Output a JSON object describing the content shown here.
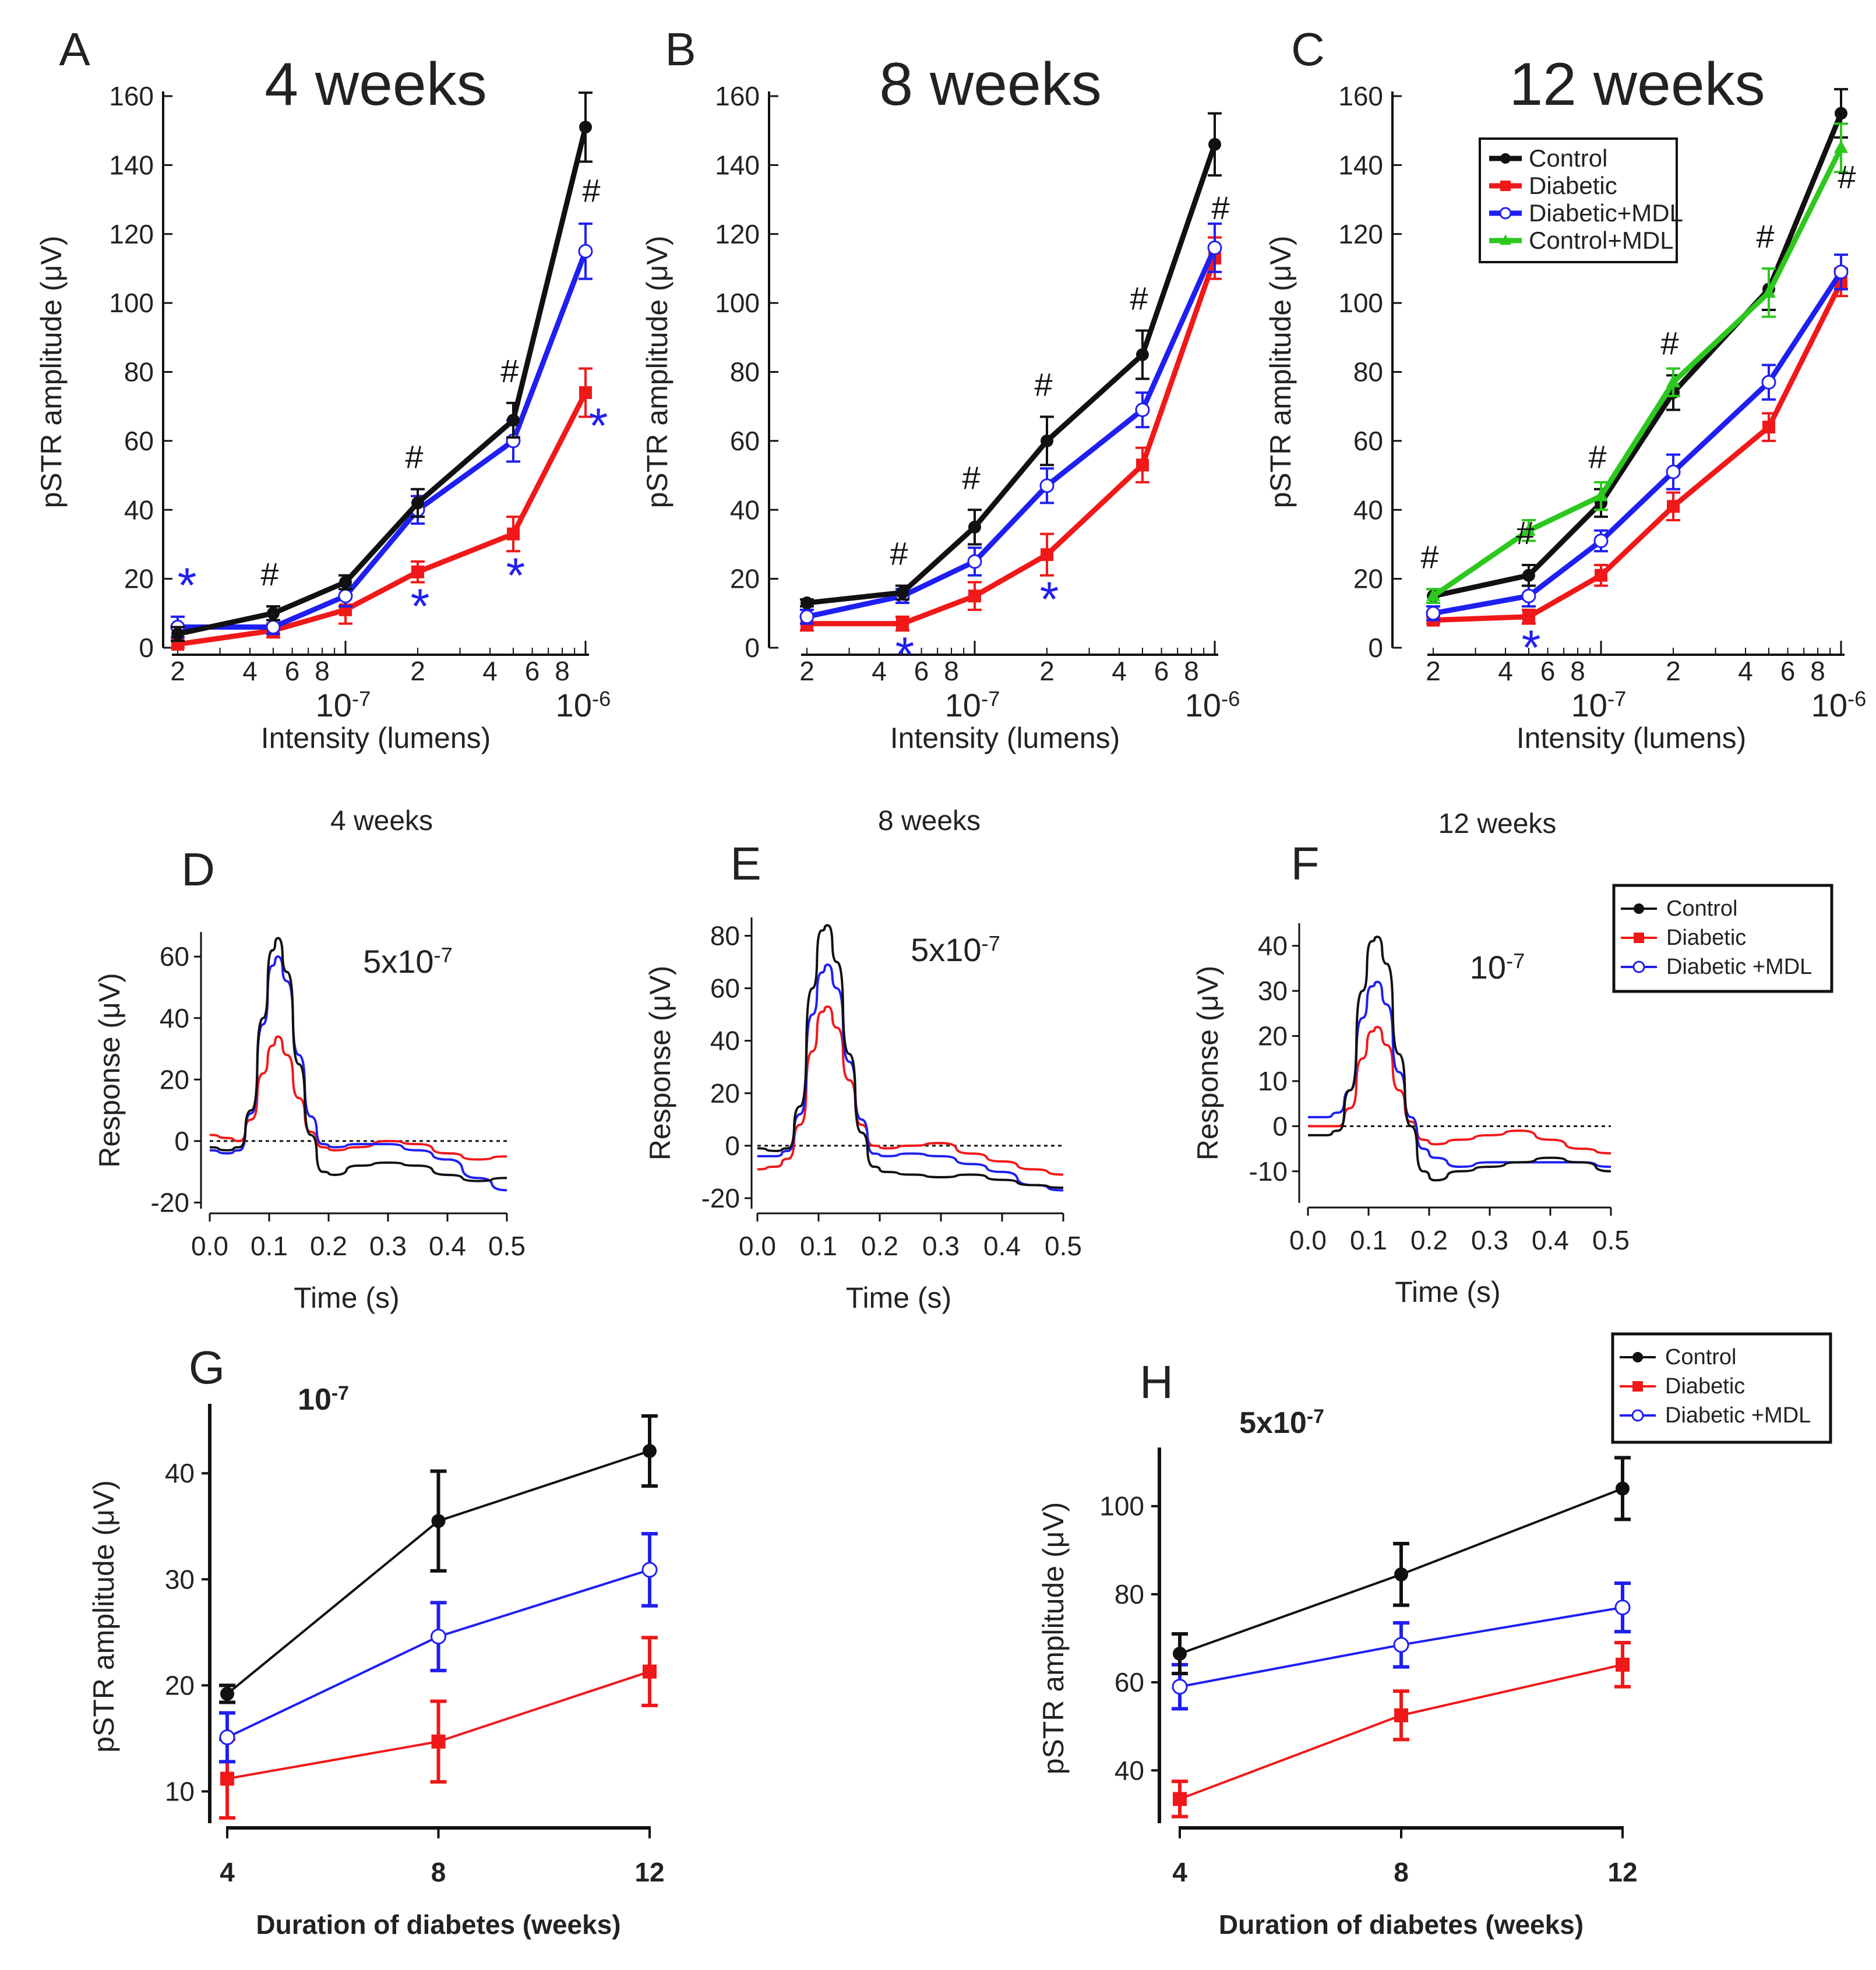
{
  "colors": {
    "control": "#111111",
    "diabetic": "#f01818",
    "diabetic_mdl": "#1f1ff2",
    "control_mdl": "#2cc81e",
    "star": "#1f1ff2",
    "hash": "#111111"
  },
  "chart_data": [
    {
      "id": "A",
      "type": "line",
      "title": "4 weeks",
      "xlabel": "Intensity (lumens)",
      "ylabel": "pSTR amplitude (μV)",
      "xscale": "log",
      "ylim": [
        0,
        160
      ],
      "yticks": [
        "0",
        "20",
        "40",
        "60",
        "80",
        "100",
        "120",
        "140",
        "160"
      ],
      "xtick_minor": [
        "2",
        "4",
        "6",
        "8",
        "2",
        "4",
        "6",
        "8"
      ],
      "xtick_decades": [
        "10-7",
        "10-6"
      ],
      "x": [
        "2e-8",
        "5e-8",
        "1e-7",
        "2e-7",
        "5e-7",
        "1e-6"
      ],
      "series": [
        {
          "name": "Control",
          "values": [
            4,
            10,
            19,
            42,
            66,
            151
          ],
          "errors": [
            2,
            2,
            2,
            4,
            5,
            10
          ]
        },
        {
          "name": "Diabetic+MDL",
          "values": [
            6,
            6,
            15,
            40,
            60,
            115
          ],
          "errors": [
            3,
            2,
            3,
            4,
            6,
            8
          ]
        },
        {
          "name": "Diabetic",
          "values": [
            1,
            5,
            11,
            22,
            33,
            74
          ],
          "errors": [
            1,
            2,
            4,
            3,
            5,
            7
          ]
        }
      ],
      "hash_at": [
        "5e-8",
        "2e-7",
        "5e-7",
        "1e-6"
      ],
      "star_at": [
        "2e-8",
        "2e-7",
        "5e-7",
        "1e-6"
      ]
    },
    {
      "id": "B",
      "type": "line",
      "title": "8 weeks",
      "xlabel": "Intensity (lumens)",
      "ylabel": "pSTR amplitude (μV)",
      "xscale": "log",
      "ylim": [
        0,
        160
      ],
      "yticks": [
        "0",
        "20",
        "40",
        "60",
        "80",
        "100",
        "120",
        "140",
        "160"
      ],
      "xtick_minor": [
        "2",
        "4",
        "6",
        "8",
        "2",
        "4",
        "6",
        "8"
      ],
      "xtick_decades": [
        "10-7",
        "10-6"
      ],
      "x": [
        "2e-8",
        "5e-8",
        "1e-7",
        "2e-7",
        "5e-7",
        "1e-6"
      ],
      "series": [
        {
          "name": "Control",
          "values": [
            13,
            16,
            35,
            60,
            85,
            146
          ],
          "errors": [
            1,
            2,
            5,
            7,
            7,
            9
          ]
        },
        {
          "name": "Diabetic+MDL",
          "values": [
            9,
            15,
            25,
            47,
            69,
            116
          ],
          "errors": [
            2,
            2,
            4,
            5,
            5,
            7
          ]
        },
        {
          "name": "Diabetic",
          "values": [
            7,
            7,
            15,
            27,
            53,
            113
          ],
          "errors": [
            2,
            2,
            4,
            6,
            5,
            6
          ]
        }
      ],
      "hash_at": [
        "5e-8",
        "1e-7",
        "2e-7",
        "5e-7",
        "1e-6"
      ],
      "star_at": [
        "5e-8",
        "2e-7"
      ]
    },
    {
      "id": "C",
      "type": "line",
      "title": "12 weeks",
      "xlabel": "Intensity (lumens)",
      "ylabel": "pSTR amplitude (μV)",
      "xscale": "log",
      "ylim": [
        0,
        160
      ],
      "yticks": [
        "0",
        "20",
        "40",
        "60",
        "80",
        "100",
        "120",
        "140",
        "160"
      ],
      "xtick_minor": [
        "2",
        "4",
        "6",
        "8",
        "2",
        "4",
        "6",
        "8"
      ],
      "xtick_decades": [
        "10-7",
        "10-6"
      ],
      "x": [
        "2e-8",
        "5e-8",
        "1e-7",
        "2e-7",
        "5e-7",
        "1e-6"
      ],
      "series": [
        {
          "name": "Control",
          "values": [
            15,
            21,
            42,
            74,
            104,
            155
          ],
          "errors": [
            2,
            3,
            4,
            5,
            6,
            7
          ]
        },
        {
          "name": "Diabetic",
          "values": [
            8,
            9,
            21,
            41,
            64,
            106
          ],
          "errors": [
            1,
            2,
            3,
            4,
            4,
            4
          ]
        },
        {
          "name": "Diabetic+MDL",
          "values": [
            10,
            15,
            31,
            51,
            77,
            109
          ],
          "errors": [
            2,
            3,
            3,
            5,
            5,
            5
          ]
        },
        {
          "name": "Control+MDL",
          "values": [
            15,
            34,
            44,
            77,
            103,
            145
          ],
          "errors": [
            2,
            3,
            4,
            4,
            7,
            7
          ]
        }
      ],
      "hash_at": [
        "2e-8",
        "5e-8",
        "1e-7",
        "2e-7",
        "5e-7",
        "1e-6"
      ],
      "star_at": [
        "5e-8"
      ],
      "legend": [
        "Control",
        "Diabetic",
        "Diabetic+MDL",
        "Control+MDL"
      ]
    },
    {
      "id": "D",
      "type": "line",
      "subtitle": "4 weeks",
      "annotation": "5x10-7",
      "xlabel": "Time (s)",
      "ylabel": "Response (μV)",
      "xlim": [
        0,
        0.5
      ],
      "ylim": [
        -22,
        68
      ],
      "xticks": [
        "0.0",
        "0.1",
        "0.2",
        "0.3",
        "0.4",
        "0.5"
      ],
      "yticks": [
        "-20",
        "0",
        "20",
        "40",
        "60"
      ],
      "series": [
        {
          "name": "Control",
          "x": [
            0,
            0.03,
            0.05,
            0.07,
            0.09,
            0.105,
            0.115,
            0.13,
            0.15,
            0.17,
            0.19,
            0.21,
            0.25,
            0.3,
            0.35,
            0.4,
            0.45,
            0.5
          ],
          "y": [
            -2,
            -3,
            -2,
            10,
            40,
            62,
            66,
            55,
            25,
            2,
            -10,
            -11,
            -8,
            -7,
            -8,
            -11,
            -13,
            -12
          ]
        },
        {
          "name": "Diabetic",
          "x": [
            0,
            0.03,
            0.05,
            0.07,
            0.09,
            0.105,
            0.115,
            0.13,
            0.15,
            0.17,
            0.19,
            0.21,
            0.25,
            0.3,
            0.35,
            0.4,
            0.45,
            0.5
          ],
          "y": [
            2,
            1,
            0,
            7,
            22,
            31,
            34,
            28,
            14,
            3,
            -2,
            -3,
            -2,
            0,
            -1,
            -4,
            -6,
            -5
          ]
        },
        {
          "name": "Diabetic +MDL",
          "x": [
            0,
            0.03,
            0.05,
            0.07,
            0.09,
            0.105,
            0.115,
            0.13,
            0.15,
            0.17,
            0.19,
            0.21,
            0.25,
            0.3,
            0.35,
            0.4,
            0.45,
            0.5
          ],
          "y": [
            -3,
            -4,
            -3,
            9,
            38,
            57,
            60,
            52,
            28,
            8,
            -1,
            -2,
            -1,
            -1,
            -3,
            -6,
            -12,
            -16
          ]
        }
      ],
      "baseline": 0
    },
    {
      "id": "E",
      "type": "line",
      "subtitle": "8 weeks",
      "annotation": "5x10-7",
      "xlabel": "Time (s)",
      "ylabel": "Response (μV)",
      "xlim": [
        0,
        0.5
      ],
      "ylim": [
        -24,
        87
      ],
      "xticks": [
        "0.0",
        "0.1",
        "0.2",
        "0.3",
        "0.4",
        "0.5"
      ],
      "yticks": [
        "-20",
        "0",
        "20",
        "40",
        "60",
        "80"
      ],
      "series": [
        {
          "name": "Control",
          "x": [
            0,
            0.03,
            0.05,
            0.07,
            0.09,
            0.105,
            0.115,
            0.13,
            0.15,
            0.17,
            0.19,
            0.21,
            0.25,
            0.3,
            0.35,
            0.4,
            0.45,
            0.5
          ],
          "y": [
            -1,
            -2,
            -1,
            15,
            60,
            82,
            84,
            70,
            35,
            5,
            -8,
            -10,
            -11,
            -12,
            -11,
            -13,
            -15,
            -16
          ]
        },
        {
          "name": "Diabetic",
          "x": [
            0,
            0.03,
            0.05,
            0.07,
            0.09,
            0.105,
            0.115,
            0.13,
            0.15,
            0.17,
            0.19,
            0.21,
            0.25,
            0.3,
            0.35,
            0.4,
            0.45,
            0.5
          ],
          "y": [
            -9,
            -8,
            -5,
            8,
            36,
            51,
            53,
            45,
            25,
            8,
            0,
            -1,
            0,
            1,
            -3,
            -6,
            -9,
            -11
          ]
        },
        {
          "name": "Diabetic +MDL",
          "x": [
            0,
            0.03,
            0.05,
            0.07,
            0.09,
            0.105,
            0.115,
            0.13,
            0.15,
            0.17,
            0.19,
            0.21,
            0.25,
            0.3,
            0.35,
            0.4,
            0.45,
            0.5
          ],
          "y": [
            -4,
            -4,
            -2,
            12,
            50,
            66,
            69,
            60,
            32,
            10,
            -3,
            -4,
            -3,
            -4,
            -7,
            -10,
            -15,
            -17
          ]
        }
      ],
      "baseline": 0
    },
    {
      "id": "F",
      "type": "line",
      "subtitle": "12 weeks",
      "annotation": "10-7",
      "xlabel": "Time (s)",
      "ylabel": "Response (μV)",
      "xlim": [
        0,
        0.5
      ],
      "ylim": [
        -17,
        45
      ],
      "xticks": [
        "0.0",
        "0.1",
        "0.2",
        "0.3",
        "0.4",
        "0.5"
      ],
      "yticks": [
        "-10",
        "0",
        "10",
        "20",
        "30",
        "40"
      ],
      "series": [
        {
          "name": "Control",
          "x": [
            0,
            0.03,
            0.05,
            0.07,
            0.09,
            0.105,
            0.115,
            0.13,
            0.15,
            0.17,
            0.19,
            0.21,
            0.25,
            0.3,
            0.35,
            0.4,
            0.45,
            0.5
          ],
          "y": [
            -2,
            -2,
            -1,
            8,
            30,
            41,
            42,
            36,
            16,
            0,
            -10,
            -12,
            -10,
            -9,
            -8,
            -7,
            -8,
            -10
          ]
        },
        {
          "name": "Diabetic",
          "x": [
            0,
            0.03,
            0.05,
            0.07,
            0.09,
            0.105,
            0.115,
            0.13,
            0.15,
            0.17,
            0.19,
            0.21,
            0.25,
            0.3,
            0.35,
            0.4,
            0.45,
            0.5
          ],
          "y": [
            0,
            0,
            0,
            4,
            15,
            21,
            22,
            18,
            8,
            1,
            -3,
            -4,
            -3,
            -2,
            -1,
            -3,
            -5,
            -6
          ]
        },
        {
          "name": "Diabetic +MDL",
          "x": [
            0,
            0.03,
            0.05,
            0.07,
            0.09,
            0.105,
            0.115,
            0.13,
            0.15,
            0.17,
            0.19,
            0.21,
            0.25,
            0.3,
            0.35,
            0.4,
            0.45,
            0.5
          ],
          "y": [
            2,
            2,
            3,
            8,
            24,
            31,
            32,
            27,
            12,
            2,
            -5,
            -7,
            -9,
            -8,
            -8,
            -8,
            -8,
            -9
          ]
        }
      ],
      "baseline": 0,
      "legend": [
        "Control",
        "Diabetic",
        "Diabetic +MDL"
      ]
    },
    {
      "id": "G",
      "type": "line",
      "annotation": "10-7",
      "xlabel": "Duration of diabetes (weeks)",
      "ylabel": "pSTR amplitude (μV)",
      "xlim": [
        4,
        12
      ],
      "ylim": [
        7,
        46
      ],
      "xticks": [
        "4",
        "8",
        "12"
      ],
      "yticks": [
        "10",
        "20",
        "30",
        "40"
      ],
      "x": [
        4,
        8,
        12
      ],
      "series": [
        {
          "name": "Control",
          "values": [
            19.2,
            35.5,
            42.1
          ],
          "errors": [
            0.8,
            4.7,
            3.3
          ]
        },
        {
          "name": "Diabetic +MDL",
          "values": [
            15.1,
            24.6,
            30.9
          ],
          "errors": [
            2.3,
            3.2,
            3.4
          ]
        },
        {
          "name": "Diabetic",
          "values": [
            11.2,
            14.7,
            21.3
          ],
          "errors": [
            3.7,
            3.8,
            3.2
          ]
        }
      ]
    },
    {
      "id": "H",
      "type": "line",
      "annotation": "5x10-7",
      "xlabel": "Duration of diabetes (weeks)",
      "ylabel": "pSTR amplitude (μV)",
      "xlim": [
        4,
        12
      ],
      "ylim": [
        28,
        112
      ],
      "xticks": [
        "4",
        "8",
        "12"
      ],
      "yticks": [
        "40",
        "60",
        "80",
        "100"
      ],
      "x": [
        4,
        8,
        12
      ],
      "series": [
        {
          "name": "Control",
          "values": [
            66.5,
            84.5,
            104
          ],
          "errors": [
            4.5,
            7,
            7
          ]
        },
        {
          "name": "Diabetic +MDL",
          "values": [
            59,
            68.5,
            77
          ],
          "errors": [
            5,
            5,
            5.5
          ]
        },
        {
          "name": "Diabetic",
          "values": [
            33.5,
            52.5,
            64
          ],
          "errors": [
            4,
            5.5,
            5
          ]
        }
      ],
      "legend": [
        "Control",
        "Diabetic",
        "Diabetic +MDL"
      ]
    }
  ]
}
